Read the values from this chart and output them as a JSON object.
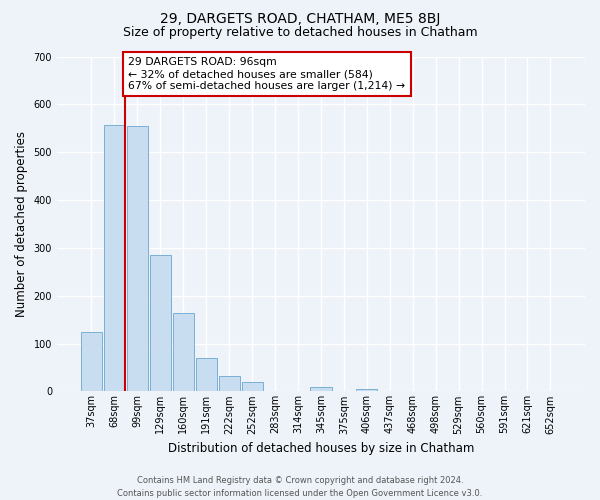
{
  "title": "29, DARGETS ROAD, CHATHAM, ME5 8BJ",
  "subtitle": "Size of property relative to detached houses in Chatham",
  "xlabel": "Distribution of detached houses by size in Chatham",
  "ylabel": "Number of detached properties",
  "bar_labels": [
    "37sqm",
    "68sqm",
    "99sqm",
    "129sqm",
    "160sqm",
    "191sqm",
    "222sqm",
    "252sqm",
    "283sqm",
    "314sqm",
    "345sqm",
    "375sqm",
    "406sqm",
    "437sqm",
    "468sqm",
    "498sqm",
    "529sqm",
    "560sqm",
    "591sqm",
    "621sqm",
    "652sqm"
  ],
  "bar_values": [
    125,
    557,
    555,
    285,
    163,
    70,
    33,
    19,
    0,
    0,
    10,
    0,
    5,
    0,
    0,
    0,
    0,
    0,
    0,
    0,
    0
  ],
  "bar_color": "#c8ddf0",
  "bar_edge_color": "#7aafd4",
  "vline_color": "#cc0000",
  "annotation_text": "29 DARGETS ROAD: 96sqm\n← 32% of detached houses are smaller (584)\n67% of semi-detached houses are larger (1,214) →",
  "annotation_box_color": "#ffffff",
  "annotation_box_edge_color": "#cc0000",
  "ylim": [
    0,
    700
  ],
  "yticks": [
    0,
    100,
    200,
    300,
    400,
    500,
    600,
    700
  ],
  "footer_line1": "Contains HM Land Registry data © Crown copyright and database right 2024.",
  "footer_line2": "Contains public sector information licensed under the Open Government Licence v3.0.",
  "background_color": "#eef3fa",
  "grid_color": "#ffffff",
  "title_fontsize": 10,
  "subtitle_fontsize": 9,
  "axis_label_fontsize": 8.5,
  "tick_fontsize": 7,
  "annotation_fontsize": 7.8,
  "footer_fontsize": 6
}
